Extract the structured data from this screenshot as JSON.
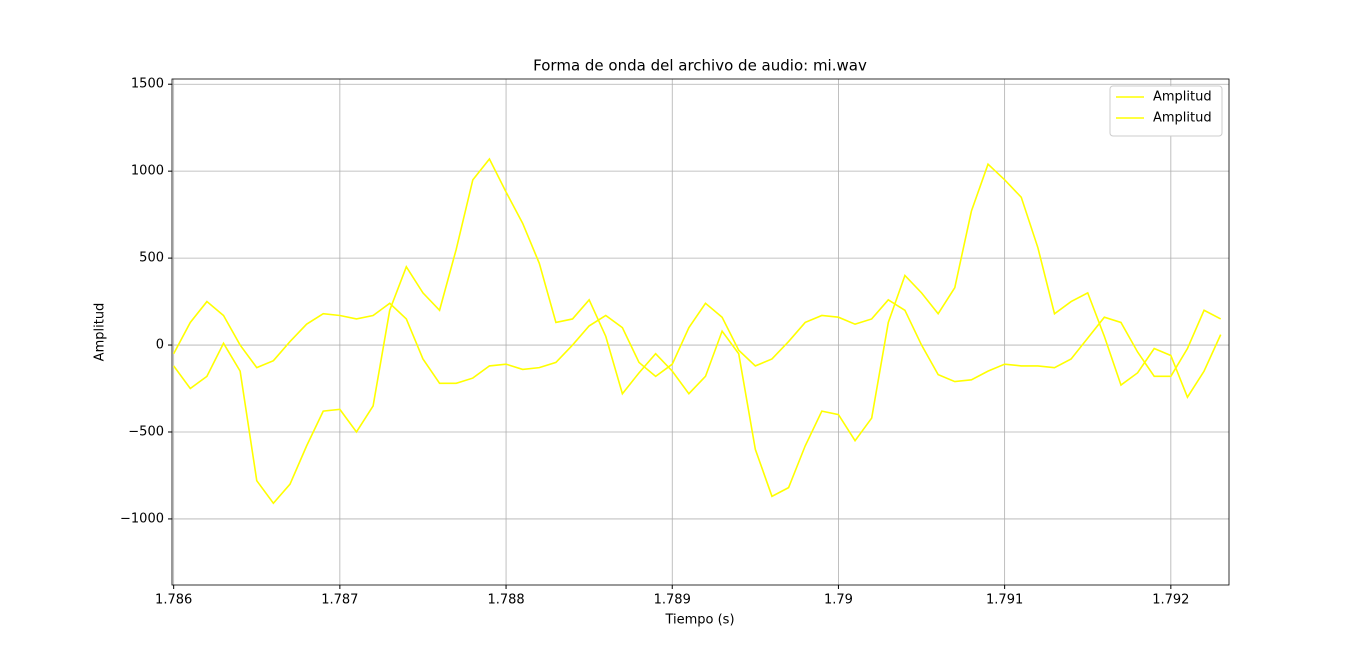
{
  "chart_data": {
    "type": "line",
    "title": "Forma de onda del archivo de audio: mi.wav",
    "x_label": "Tiempo (s)",
    "y_label": "Amplitud",
    "x": [
      1.786,
      1.7861,
      1.7862,
      1.7863,
      1.7864,
      1.7865,
      1.7866,
      1.7867,
      1.7868,
      1.7869,
      1.787,
      1.7871,
      1.7872,
      1.7873,
      1.7874,
      1.7875,
      1.7876,
      1.7877,
      1.7878,
      1.7879,
      1.788,
      1.7881,
      1.7882,
      1.7883,
      1.7884,
      1.7885,
      1.7886,
      1.7887,
      1.7888,
      1.7889,
      1.789,
      1.7891,
      1.7892,
      1.7893,
      1.7894,
      1.7895,
      1.7896,
      1.7897,
      1.7898,
      1.7899,
      1.79,
      1.7901,
      1.7902,
      1.7903,
      1.7904,
      1.7905,
      1.7906,
      1.7907,
      1.7908,
      1.7909,
      1.791,
      1.7911,
      1.7912,
      1.7913,
      1.7914,
      1.7915,
      1.7916,
      1.7917,
      1.7918,
      1.7919,
      1.792,
      1.7921,
      1.7922,
      1.7923
    ],
    "series": [
      {
        "name": "Amplitud",
        "color": "#ffff00",
        "values": [
          -50,
          130,
          250,
          170,
          0,
          -130,
          -90,
          20,
          120,
          180,
          170,
          150,
          170,
          240,
          150,
          -80,
          -220,
          -220,
          -190,
          -120,
          -110,
          -140,
          -130,
          -100,
          0,
          110,
          170,
          100,
          -100,
          -180,
          -110,
          100,
          240,
          160,
          -30,
          -120,
          -80,
          20,
          130,
          170,
          160,
          120,
          150,
          260,
          200,
          0,
          -170,
          -210,
          -200,
          -150,
          -110,
          -120,
          -120,
          -130,
          -80,
          40,
          160,
          130,
          -40,
          -180,
          -180,
          -20,
          200,
          150
        ]
      },
      {
        "name": "Amplitud",
        "color": "#ffff00",
        "values": [
          -120,
          -250,
          -180,
          10,
          -150,
          -780,
          -910,
          -800,
          -580,
          -380,
          -370,
          -500,
          -350,
          200,
          450,
          300,
          200,
          550,
          950,
          1070,
          880,
          700,
          470,
          130,
          150,
          260,
          50,
          -280,
          -160,
          -50,
          -150,
          -280,
          -180,
          80,
          -50,
          -600,
          -870,
          -820,
          -580,
          -380,
          -400,
          -550,
          -420,
          130,
          400,
          300,
          180,
          330,
          770,
          1040,
          950,
          850,
          560,
          180,
          250,
          300,
          50,
          -230,
          -160,
          -20,
          -60,
          -300,
          -150,
          60
        ]
      }
    ],
    "xlim": [
      1.78599,
      1.79235
    ],
    "ylim": [
      -1380,
      1530
    ],
    "xticks": [
      1.786,
      1.787,
      1.788,
      1.789,
      1.79,
      1.791,
      1.792
    ],
    "yticks": [
      {
        "value": -1000,
        "label": "−1000"
      },
      {
        "value": -500,
        "label": "−500"
      },
      0,
      500,
      1000,
      1500
    ],
    "grid": true,
    "legend": "upper right"
  }
}
